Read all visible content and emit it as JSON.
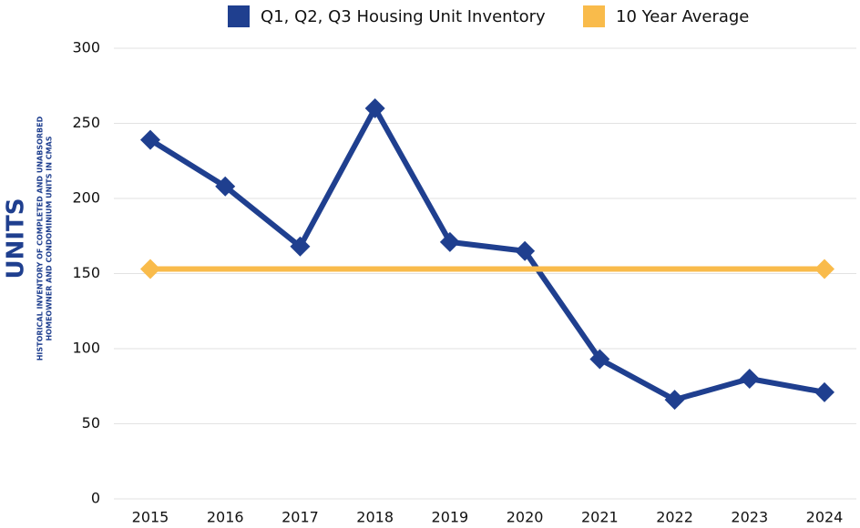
{
  "chart_data": {
    "type": "line",
    "ylabel": "UNITS",
    "ylabel_note": [
      "HISTORICAL INVENTORY OF COMPLETED AND UNABSORBED",
      "HOMEOWNER AND CONDOMINIUM UNITS IN CMAS"
    ],
    "categories": [
      "2015",
      "2016",
      "2017",
      "2018",
      "2019",
      "2020",
      "2021",
      "2022",
      "2023",
      "2024"
    ],
    "series": [
      {
        "name": "Q1, Q2, Q3 Housing Unit Inventory",
        "color": "#1f3f8f",
        "values": [
          239,
          208,
          168,
          260,
          171,
          165,
          93,
          66,
          80,
          71
        ]
      },
      {
        "name": "10 Year Average",
        "color": "#f9bb4b",
        "values": [
          153,
          153,
          153,
          153,
          153,
          153,
          153,
          153,
          153,
          153
        ]
      }
    ],
    "ylim": [
      0,
      300
    ],
    "yticks": [
      0,
      50,
      100,
      150,
      200,
      250,
      300
    ],
    "grid": true,
    "legend": "top"
  }
}
